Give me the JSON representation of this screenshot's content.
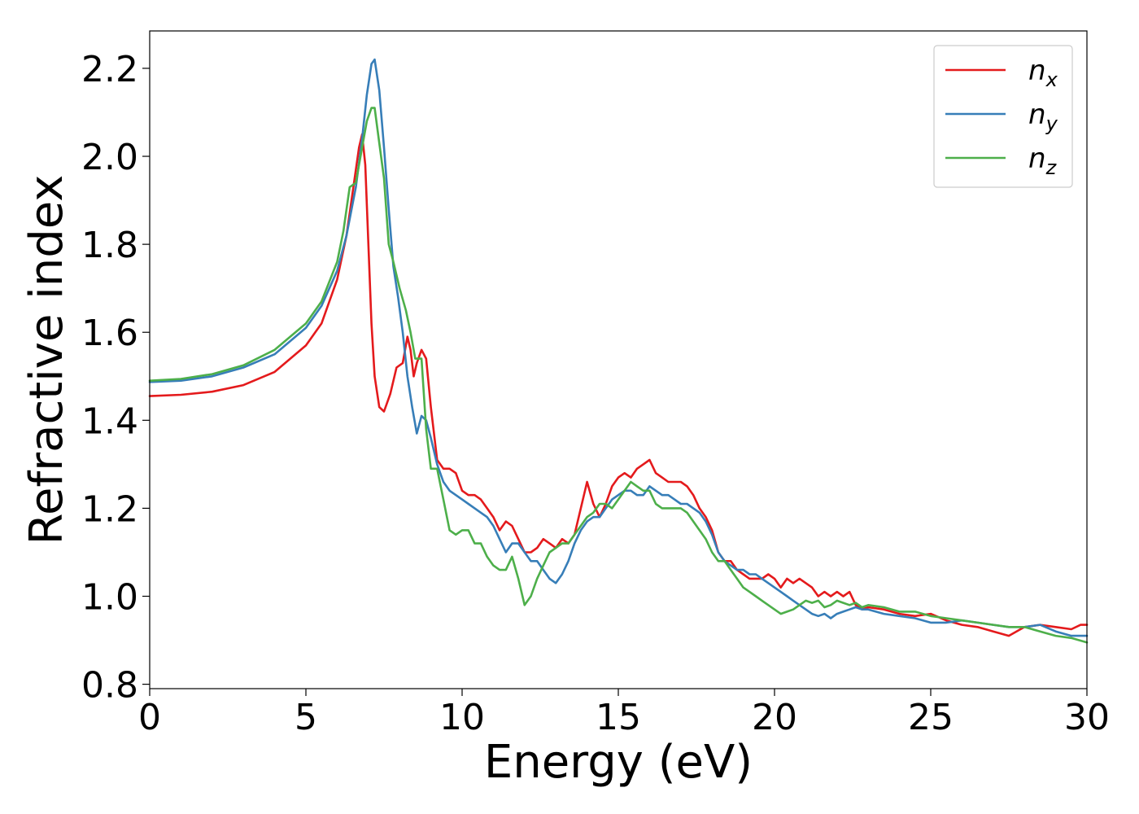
{
  "chart_data": {
    "type": "line",
    "xlabel": "Energy (eV)",
    "ylabel": "Refractive index",
    "xlim": [
      0,
      30
    ],
    "ylim": [
      0.79,
      2.285
    ],
    "xticks": [
      0,
      5,
      10,
      15,
      20,
      25,
      30
    ],
    "xtick_labels": [
      "0",
      "5",
      "10",
      "15",
      "20",
      "25",
      "30"
    ],
    "yticks": [
      0.8,
      1.0,
      1.2,
      1.4,
      1.6,
      1.8,
      2.0,
      2.2
    ],
    "ytick_labels": [
      "0.8",
      "1.0",
      "1.2",
      "1.4",
      "1.6",
      "1.8",
      "2.0",
      "2.2"
    ],
    "grid": false,
    "legend_position": "top-right",
    "series": [
      {
        "name": "n",
        "subscript": "x",
        "color": "#e41a1c",
        "x": [
          0,
          1,
          2,
          3,
          4,
          5,
          5.5,
          6,
          6.3,
          6.5,
          6.7,
          6.8,
          6.9,
          7.0,
          7.1,
          7.2,
          7.35,
          7.5,
          7.7,
          7.9,
          8.1,
          8.25,
          8.35,
          8.45,
          8.55,
          8.7,
          8.85,
          9.0,
          9.2,
          9.4,
          9.6,
          9.8,
          10.0,
          10.2,
          10.4,
          10.6,
          10.8,
          11.0,
          11.2,
          11.4,
          11.6,
          11.8,
          12.0,
          12.2,
          12.4,
          12.6,
          12.8,
          13.0,
          13.2,
          13.4,
          13.6,
          13.8,
          14.0,
          14.2,
          14.4,
          14.6,
          14.8,
          15.0,
          15.2,
          15.4,
          15.6,
          15.8,
          16.0,
          16.2,
          16.4,
          16.6,
          16.8,
          17.0,
          17.2,
          17.4,
          17.6,
          17.8,
          18.0,
          18.2,
          18.4,
          18.6,
          18.8,
          19.0,
          19.2,
          19.4,
          19.6,
          19.8,
          20.0,
          20.2,
          20.4,
          20.6,
          20.8,
          21.0,
          21.2,
          21.4,
          21.6,
          21.8,
          22.0,
          22.2,
          22.4,
          22.6,
          22.8,
          23.0,
          23.5,
          24.0,
          24.5,
          25.0,
          25.5,
          26.0,
          26.5,
          27.0,
          27.5,
          28.0,
          28.5,
          29.0,
          29.5,
          29.8,
          30.0
        ],
        "y": [
          1.455,
          1.458,
          1.465,
          1.48,
          1.51,
          1.57,
          1.62,
          1.72,
          1.82,
          1.92,
          2.02,
          2.05,
          1.98,
          1.8,
          1.62,
          1.5,
          1.43,
          1.42,
          1.46,
          1.52,
          1.53,
          1.59,
          1.56,
          1.5,
          1.53,
          1.56,
          1.54,
          1.43,
          1.31,
          1.29,
          1.29,
          1.28,
          1.24,
          1.23,
          1.23,
          1.22,
          1.2,
          1.18,
          1.15,
          1.17,
          1.16,
          1.13,
          1.1,
          1.1,
          1.11,
          1.13,
          1.12,
          1.11,
          1.13,
          1.12,
          1.14,
          1.2,
          1.26,
          1.21,
          1.18,
          1.21,
          1.25,
          1.27,
          1.28,
          1.27,
          1.29,
          1.3,
          1.31,
          1.28,
          1.27,
          1.26,
          1.26,
          1.26,
          1.25,
          1.23,
          1.2,
          1.18,
          1.15,
          1.1,
          1.08,
          1.08,
          1.06,
          1.05,
          1.04,
          1.04,
          1.04,
          1.05,
          1.04,
          1.02,
          1.04,
          1.03,
          1.04,
          1.03,
          1.02,
          1.0,
          1.01,
          1.0,
          1.01,
          1.0,
          1.01,
          0.98,
          0.97,
          0.975,
          0.97,
          0.96,
          0.955,
          0.96,
          0.945,
          0.935,
          0.93,
          0.92,
          0.91,
          0.93,
          0.935,
          0.93,
          0.925,
          0.935,
          0.935
        ]
      },
      {
        "name": "n",
        "subscript": "y",
        "color": "#377eb8",
        "x": [
          0,
          1,
          2,
          3,
          4,
          5,
          5.5,
          6,
          6.3,
          6.6,
          6.8,
          6.95,
          7.1,
          7.2,
          7.35,
          7.5,
          7.65,
          7.8,
          7.95,
          8.1,
          8.25,
          8.4,
          8.55,
          8.7,
          8.85,
          9.0,
          9.2,
          9.4,
          9.6,
          9.8,
          10.0,
          10.2,
          10.4,
          10.6,
          10.8,
          11.0,
          11.2,
          11.4,
          11.6,
          11.8,
          12.0,
          12.2,
          12.4,
          12.6,
          12.8,
          13.0,
          13.2,
          13.4,
          13.6,
          13.8,
          14.0,
          14.2,
          14.4,
          14.6,
          14.8,
          15.0,
          15.2,
          15.4,
          15.6,
          15.8,
          16.0,
          16.2,
          16.4,
          16.6,
          16.8,
          17.0,
          17.2,
          17.4,
          17.6,
          17.8,
          18.0,
          18.2,
          18.4,
          18.6,
          18.8,
          19.0,
          19.2,
          19.4,
          19.6,
          19.8,
          20.0,
          20.2,
          20.4,
          20.6,
          20.8,
          21.0,
          21.2,
          21.4,
          21.6,
          21.8,
          22.0,
          22.2,
          22.4,
          22.6,
          22.8,
          23.0,
          23.5,
          24.0,
          24.5,
          25.0,
          25.5,
          26.0,
          26.5,
          27.0,
          27.5,
          28.0,
          28.5,
          29.0,
          29.5,
          30.0
        ],
        "y": [
          1.487,
          1.49,
          1.5,
          1.52,
          1.55,
          1.61,
          1.66,
          1.74,
          1.82,
          1.93,
          2.04,
          2.14,
          2.21,
          2.22,
          2.15,
          2.02,
          1.88,
          1.75,
          1.68,
          1.6,
          1.5,
          1.43,
          1.37,
          1.41,
          1.4,
          1.36,
          1.3,
          1.26,
          1.24,
          1.23,
          1.22,
          1.21,
          1.2,
          1.19,
          1.18,
          1.16,
          1.13,
          1.1,
          1.12,
          1.12,
          1.1,
          1.08,
          1.08,
          1.06,
          1.04,
          1.03,
          1.05,
          1.08,
          1.12,
          1.15,
          1.17,
          1.18,
          1.18,
          1.2,
          1.22,
          1.23,
          1.24,
          1.24,
          1.23,
          1.23,
          1.25,
          1.24,
          1.23,
          1.23,
          1.22,
          1.21,
          1.21,
          1.2,
          1.19,
          1.17,
          1.14,
          1.1,
          1.08,
          1.07,
          1.06,
          1.06,
          1.05,
          1.05,
          1.04,
          1.03,
          1.02,
          1.01,
          1.0,
          0.99,
          0.98,
          0.97,
          0.96,
          0.955,
          0.96,
          0.95,
          0.96,
          0.965,
          0.97,
          0.975,
          0.97,
          0.97,
          0.96,
          0.955,
          0.95,
          0.94,
          0.94,
          0.945,
          0.94,
          0.935,
          0.93,
          0.93,
          0.935,
          0.92,
          0.91,
          0.91
        ]
      },
      {
        "name": "n",
        "subscript": "z",
        "color": "#4daf4a",
        "x": [
          0,
          1,
          2,
          3,
          4,
          5,
          5.5,
          6,
          6.2,
          6.4,
          6.6,
          6.8,
          6.95,
          7.1,
          7.2,
          7.35,
          7.5,
          7.65,
          7.8,
          8.0,
          8.2,
          8.35,
          8.5,
          8.7,
          8.85,
          9.0,
          9.2,
          9.4,
          9.6,
          9.8,
          10.0,
          10.2,
          10.4,
          10.6,
          10.8,
          11.0,
          11.2,
          11.4,
          11.6,
          11.8,
          12.0,
          12.2,
          12.4,
          12.6,
          12.8,
          13.0,
          13.2,
          13.4,
          13.6,
          13.8,
          14.0,
          14.2,
          14.4,
          14.6,
          14.8,
          15.0,
          15.2,
          15.4,
          15.6,
          15.8,
          16.0,
          16.2,
          16.4,
          16.6,
          16.8,
          17.0,
          17.2,
          17.4,
          17.6,
          17.8,
          18.0,
          18.2,
          18.4,
          18.6,
          18.8,
          19.0,
          19.2,
          19.4,
          19.6,
          19.8,
          20.0,
          20.2,
          20.4,
          20.6,
          20.8,
          21.0,
          21.2,
          21.4,
          21.6,
          21.8,
          22.0,
          22.2,
          22.4,
          22.6,
          22.8,
          23.0,
          23.5,
          24.0,
          24.5,
          25.0,
          25.5,
          26.0,
          26.5,
          27.0,
          27.5,
          28.0,
          28.5,
          29.0,
          29.5,
          30.0
        ],
        "y": [
          1.49,
          1.494,
          1.505,
          1.525,
          1.56,
          1.62,
          1.67,
          1.76,
          1.83,
          1.93,
          1.94,
          2.02,
          2.08,
          2.11,
          2.11,
          2.03,
          1.95,
          1.8,
          1.76,
          1.7,
          1.65,
          1.6,
          1.54,
          1.54,
          1.38,
          1.29,
          1.29,
          1.22,
          1.15,
          1.14,
          1.15,
          1.15,
          1.12,
          1.12,
          1.09,
          1.07,
          1.06,
          1.06,
          1.09,
          1.04,
          0.98,
          1.0,
          1.04,
          1.07,
          1.1,
          1.11,
          1.12,
          1.12,
          1.14,
          1.16,
          1.18,
          1.19,
          1.21,
          1.21,
          1.2,
          1.22,
          1.24,
          1.26,
          1.25,
          1.24,
          1.24,
          1.21,
          1.2,
          1.2,
          1.2,
          1.2,
          1.19,
          1.17,
          1.15,
          1.13,
          1.1,
          1.08,
          1.08,
          1.06,
          1.04,
          1.02,
          1.01,
          1.0,
          0.99,
          0.98,
          0.97,
          0.96,
          0.965,
          0.97,
          0.98,
          0.99,
          0.985,
          0.99,
          0.975,
          0.98,
          0.99,
          0.985,
          0.98,
          0.985,
          0.975,
          0.98,
          0.975,
          0.965,
          0.965,
          0.955,
          0.95,
          0.945,
          0.94,
          0.935,
          0.93,
          0.93,
          0.92,
          0.91,
          0.905,
          0.895
        ]
      }
    ]
  }
}
